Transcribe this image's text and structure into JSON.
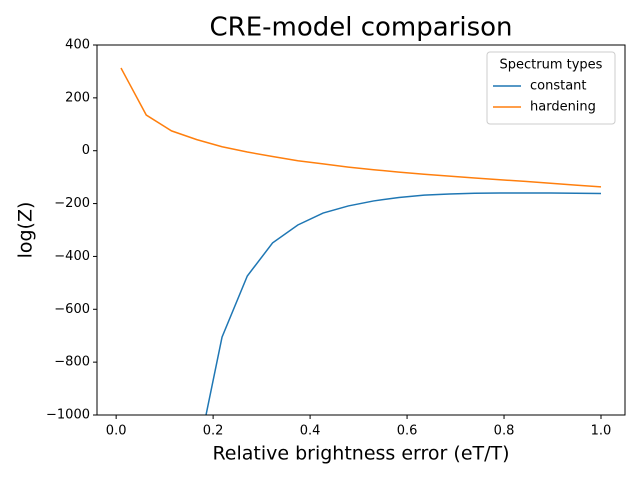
{
  "chart_data": {
    "type": "line",
    "title": "CRE-model comparison",
    "x_label": "Relative brightness error (eT/T)",
    "y_label": "log(Z)",
    "x": [
      0.01,
      0.0621,
      0.1142,
      0.1663,
      0.2184,
      0.2705,
      0.3226,
      0.3747,
      0.4268,
      0.4789,
      0.5311,
      0.5832,
      0.6353,
      0.6874,
      0.7395,
      0.7916,
      0.8437,
      0.8958,
      0.9479,
      1.0
    ],
    "series": [
      {
        "name": "constant",
        "color": "#1f77b4",
        "values": [
          null,
          null,
          null,
          -1170,
          -705,
          -474,
          -349,
          -281,
          -236,
          -209,
          -190,
          -177,
          -168,
          -164,
          -161,
          -160,
          -160,
          -160,
          -161,
          -162
        ]
      },
      {
        "name": "hardening",
        "color": "#ff7f0e",
        "values": [
          313,
          135,
          75,
          42,
          15,
          -5,
          -22,
          -38,
          -50,
          -62,
          -72,
          -81,
          -89,
          -96,
          -103,
          -110,
          -116,
          -123,
          -130,
          -137
        ]
      }
    ],
    "xlim": [
      -0.0395,
      1.0495
    ],
    "ylim": [
      -1000,
      400
    ],
    "xticks": [
      {
        "value": 0,
        "label": "0.0"
      },
      {
        "value": 0.2,
        "label": "0.2"
      },
      {
        "value": 0.4,
        "label": "0.4"
      },
      {
        "value": 0.6,
        "label": "0.6"
      },
      {
        "value": 0.8,
        "label": "0.8"
      },
      {
        "value": 1,
        "label": "1.0"
      }
    ],
    "yticks": [
      {
        "value": -1000,
        "label": "−1000"
      },
      {
        "value": -800,
        "label": "−800"
      },
      {
        "value": -600,
        "label": "−600"
      },
      {
        "value": -400,
        "label": "−400"
      },
      {
        "value": -200,
        "label": "−200"
      },
      0,
      200,
      400
    ],
    "legend_title": "Spectrum types",
    "legend_position": "upper right",
    "grid": false
  }
}
